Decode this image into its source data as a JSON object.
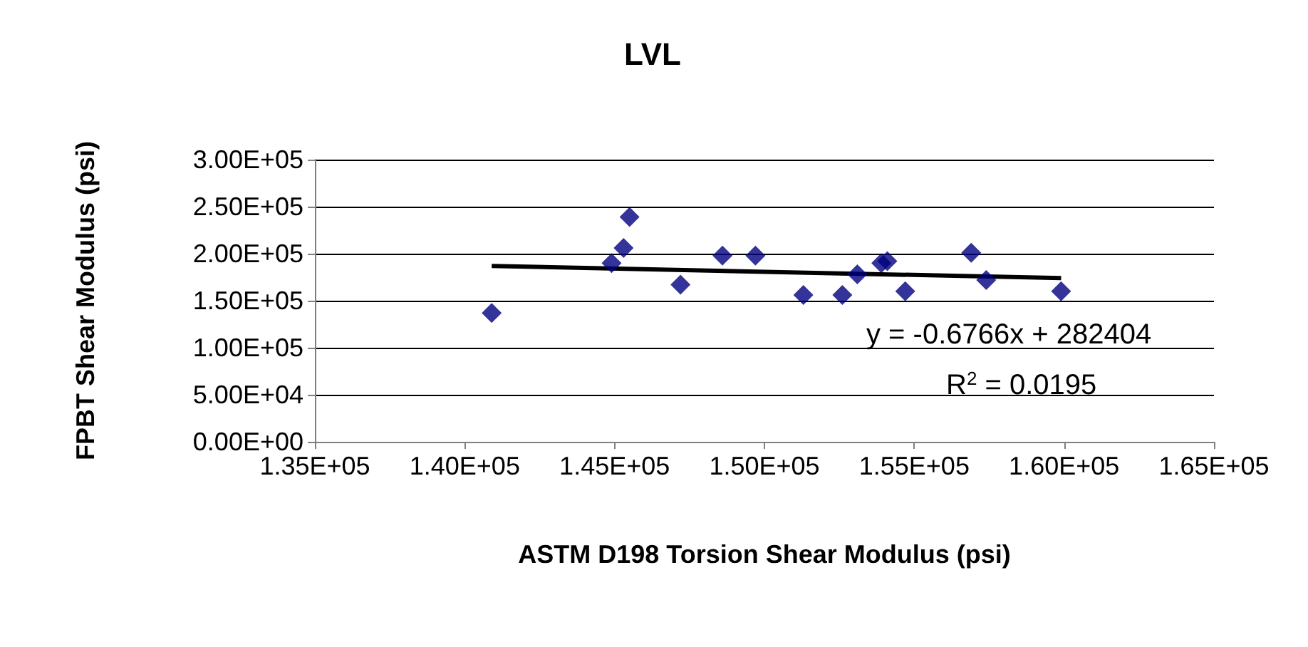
{
  "chart_data": {
    "type": "scatter",
    "title": "LVL",
    "xlabel": "ASTM D198 Torsion Shear Modulus (psi)",
    "ylabel": "FPBT Shear Modulus (psi)",
    "marker": "diamond",
    "grid": "y",
    "xlim": [
      135000,
      165000
    ],
    "xticks": [
      {
        "value": 135000,
        "label": "1.35E+05"
      },
      {
        "value": 140000,
        "label": "1.40E+05"
      },
      {
        "value": 145000,
        "label": "1.45E+05"
      },
      {
        "value": 150000,
        "label": "1.50E+05"
      },
      {
        "value": 155000,
        "label": "1.55E+05"
      },
      {
        "value": 160000,
        "label": "1.60E+05"
      },
      {
        "value": 165000,
        "label": "1.65E+05"
      }
    ],
    "ylim": [
      0,
      300000
    ],
    "yticks": [
      {
        "value": 0,
        "label": "0.00E+00"
      },
      {
        "value": 50000,
        "label": "5.00E+04"
      },
      {
        "value": 100000,
        "label": "1.00E+05"
      },
      {
        "value": 150000,
        "label": "1.50E+05"
      },
      {
        "value": 200000,
        "label": "2.00E+05"
      },
      {
        "value": 250000,
        "label": "2.50E+05"
      },
      {
        "value": 300000,
        "label": "3.00E+05"
      }
    ],
    "series": [
      {
        "color": "#000080",
        "x": [
          140900,
          144900,
          145300,
          145500,
          147200,
          148600,
          149700,
          151300,
          152600,
          153100,
          153900,
          154100,
          154700,
          156900,
          157400,
          159900
        ],
        "values": [
          137000,
          190000,
          206000,
          239000,
          167000,
          198000,
          198000,
          156000,
          156000,
          178000,
          190000,
          192000,
          160000,
          201000,
          172000,
          160000
        ]
      },
      {
        "type": "line",
        "marker": "none",
        "color": "#000000",
        "x": [
          140900,
          159900
        ],
        "values": [
          187000,
          174000
        ]
      }
    ],
    "annotations": [
      "y = -0.6766x + 282404",
      "R$^{2}$ = 0.0195"
    ]
  }
}
